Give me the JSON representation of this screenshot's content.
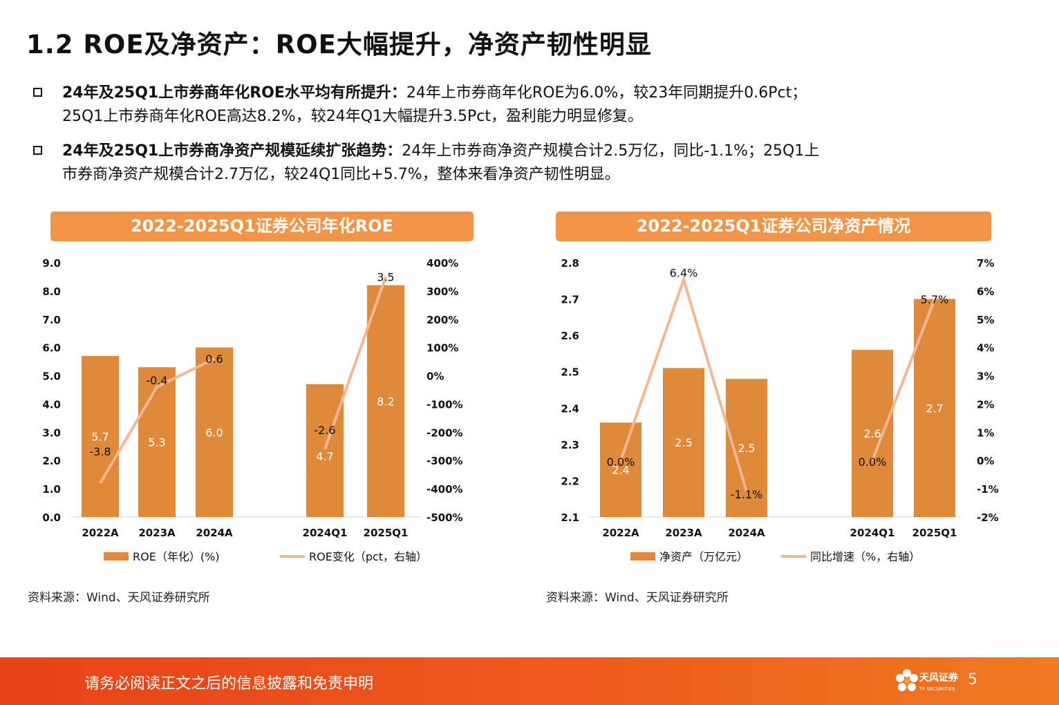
{
  "title": "1.2 ROE及净资产：ROE大幅提升，净资产韧性明显",
  "bullets": [
    {
      "bold": "24年及25Q1上市券商年化ROE水平均有所提升：",
      "text1": "24年上市券商年化ROE为6.0%，较23年同期提升0.6Pct；",
      "text2": "25Q1上市券商年化ROE高达8.2%，较24年Q1大幅提升3.5Pct，盈利能力明显修复。"
    },
    {
      "bold": "24年及25Q1上市券商净资产规模延续扩张趋势：",
      "text1": "24年上市券商净资产规模合计2.5万亿，同比-1.1%；25Q1上",
      "text2": "市券商净资产规模合计2.7万亿，较24Q1同比+5.7%，整体来看净资产韧性明显。"
    }
  ],
  "chart_data": [
    {
      "type": "bar",
      "title": "2022-2025Q1证券公司年化ROE",
      "categories": [
        "2022A",
        "2023A",
        "2024A",
        "2024Q1",
        "2025Q1"
      ],
      "series": [
        {
          "name": "ROE（年化）(%)",
          "type": "bar",
          "axis": "left",
          "values": [
            5.7,
            5.3,
            6.0,
            4.7,
            8.2
          ],
          "labels": [
            "5.7",
            "5.3",
            "6.0",
            "4.7",
            "8.2"
          ]
        },
        {
          "name": "ROE变化（pct，右轴）",
          "type": "line",
          "axis": "right",
          "segments": [
            [
              0,
              1,
              2
            ],
            [
              3,
              4
            ]
          ],
          "values": [
            -3.8,
            -0.4,
            0.6,
            -2.6,
            3.5
          ],
          "labels": [
            "-3.8",
            "-0.4",
            "0.6",
            "-2.6",
            "3.5"
          ]
        }
      ],
      "yleft": {
        "min": 0,
        "max": 9,
        "step": 1,
        "ticks": [
          "0.0",
          "1.0",
          "2.0",
          "3.0",
          "4.0",
          "5.0",
          "6.0",
          "7.0",
          "8.0",
          "9.0"
        ]
      },
      "yright": {
        "min": -5,
        "max": 4,
        "step": 1,
        "ticks": [
          "-500%",
          "-400%",
          "-300%",
          "-200%",
          "-100%",
          "0%",
          "100%",
          "200%",
          "300%",
          "400%"
        ]
      },
      "legend_position": "bottom",
      "grid": false
    },
    {
      "type": "bar",
      "title": "2022-2025Q1证券公司净资产情况",
      "categories": [
        "2022A",
        "2023A",
        "2024A",
        "2024Q1",
        "2025Q1"
      ],
      "series": [
        {
          "name": "净资产（万亿元）",
          "type": "bar",
          "axis": "left",
          "values": [
            2.36,
            2.51,
            2.48,
            2.56,
            2.7
          ],
          "labels": [
            "2.4",
            "2.5",
            "2.5",
            "2.6",
            "2.7"
          ]
        },
        {
          "name": "同比增速（%，右轴）",
          "type": "line",
          "axis": "right",
          "segments": [
            [
              0,
              1,
              2
            ],
            [
              3,
              4
            ]
          ],
          "values": [
            0.0,
            6.4,
            -1.1,
            0.0,
            5.7
          ],
          "labels": [
            "0.0%",
            "6.4%",
            "-1.1%",
            "0.0%",
            "5.7%"
          ]
        }
      ],
      "yleft": {
        "min": 2.1,
        "max": 2.8,
        "step": 0.1,
        "ticks": [
          "2.1",
          "2.2",
          "2.3",
          "2.4",
          "2.5",
          "2.6",
          "2.7",
          "2.8"
        ]
      },
      "yright": {
        "min": -2,
        "max": 7,
        "step": 1,
        "ticks": [
          "-2%",
          "-1%",
          "0%",
          "1%",
          "2%",
          "3%",
          "4%",
          "5%",
          "6%",
          "7%"
        ]
      },
      "legend_position": "bottom",
      "grid": false
    }
  ],
  "colors": {
    "bar": "#df893a",
    "line": "#f7b692",
    "header": "#f39447",
    "footer": "#e8421a"
  },
  "source": "资料来源：Wind、天风证券研究所",
  "footer": {
    "disclaimer": "请务必阅读正文之后的信息披露和免责申明",
    "page": "5"
  },
  "logo": {
    "name": "天风证券",
    "sub": "TF SECURITIES",
    "icon": "flower-logo-icon"
  }
}
